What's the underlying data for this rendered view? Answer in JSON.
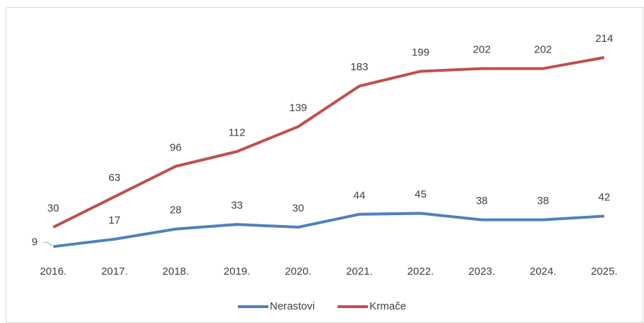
{
  "chart_data": {
    "type": "line",
    "categories": [
      "2016.",
      "2017.",
      "2018.",
      "2019.",
      "2020.",
      "2021.",
      "2022.",
      "2023.",
      "2024.",
      "2025."
    ],
    "series": [
      {
        "name": "Nerastovi",
        "color": "#4f81bd",
        "values": [
          9,
          17,
          28,
          33,
          30,
          44,
          45,
          38,
          38,
          42
        ]
      },
      {
        "name": "Krmače",
        "color": "#c0504d",
        "values": [
          30,
          63,
          96,
          112,
          139,
          183,
          199,
          202,
          202,
          214
        ]
      }
    ]
  }
}
